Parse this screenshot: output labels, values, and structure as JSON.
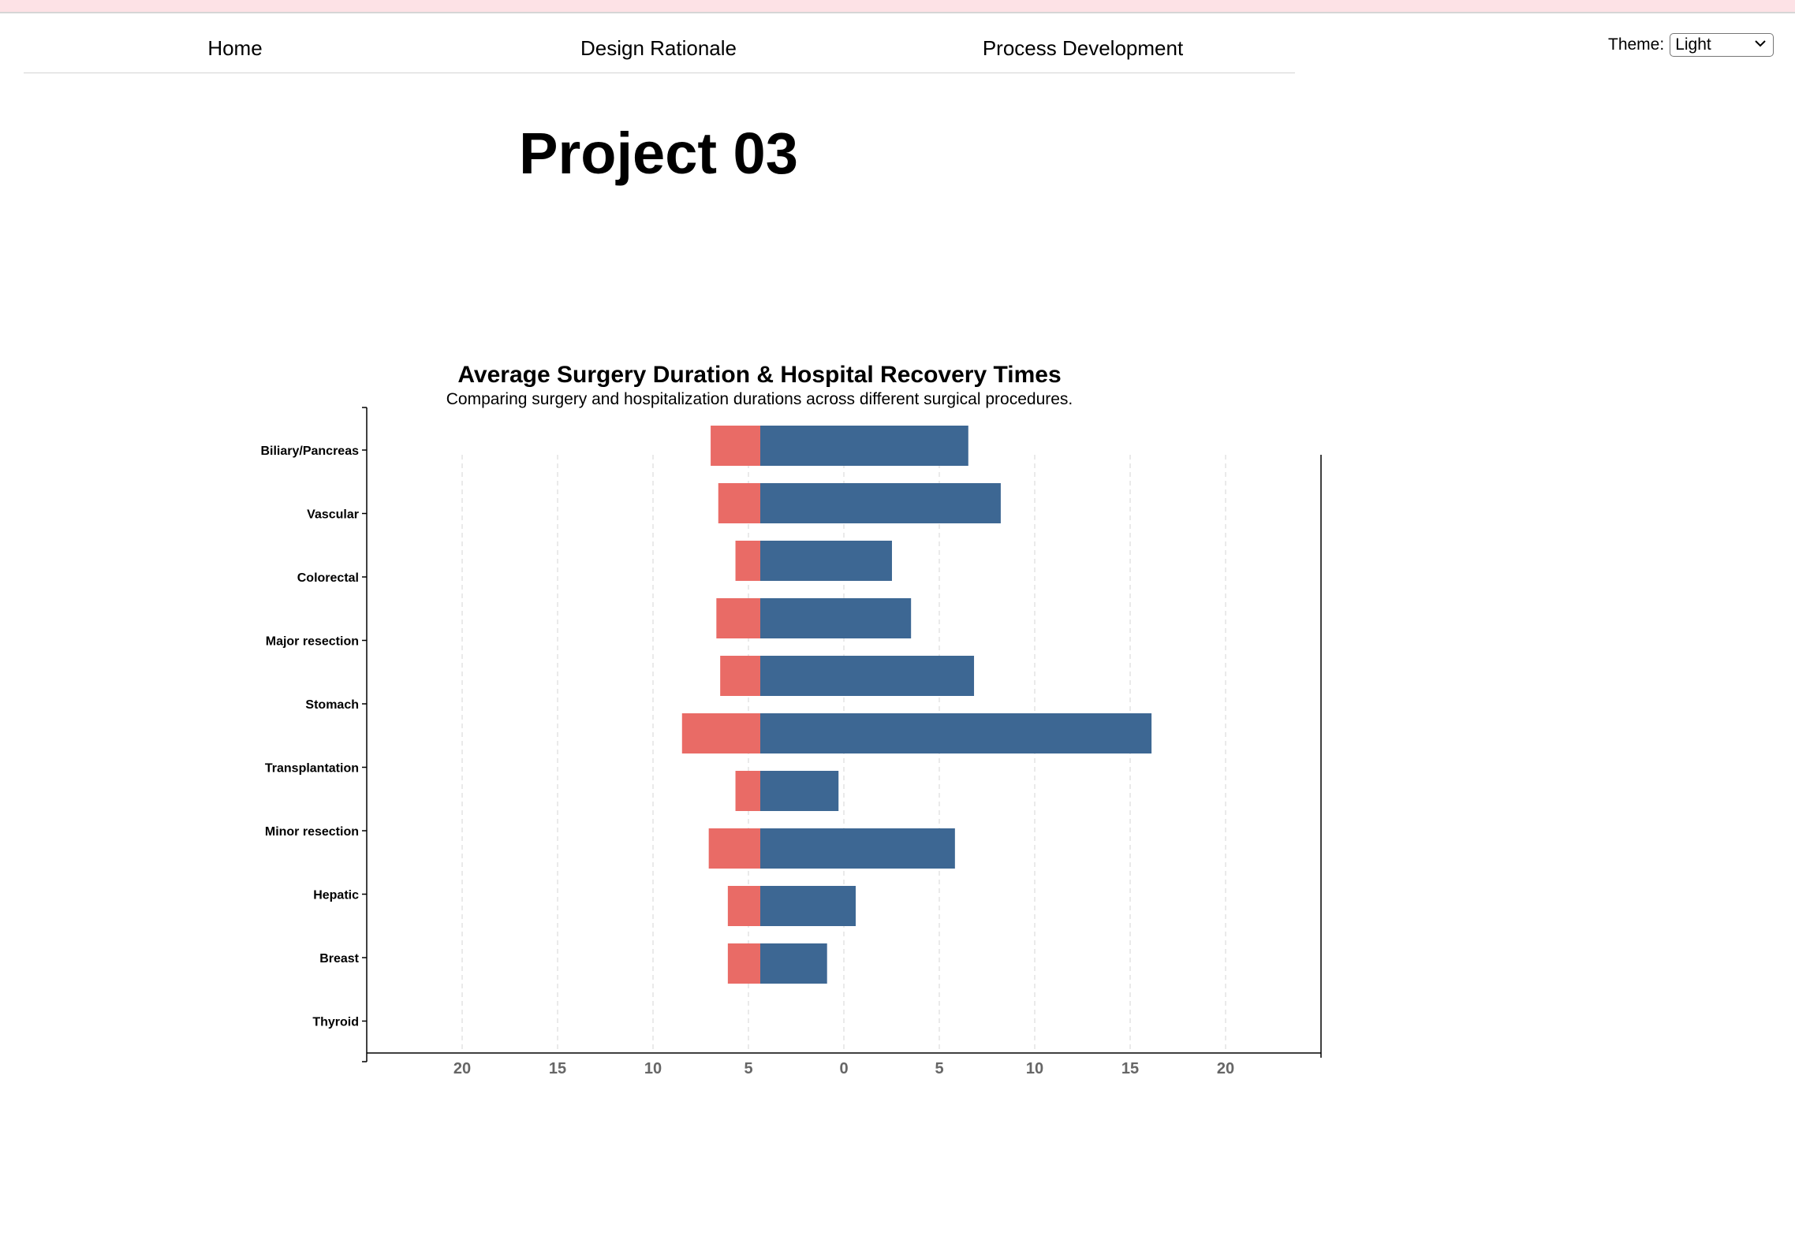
{
  "nav": {
    "items": [
      {
        "label": "Home"
      },
      {
        "label": "Design Rationale"
      },
      {
        "label": "Process Development"
      }
    ]
  },
  "theme": {
    "label": "Theme:",
    "selected": "Light"
  },
  "page_title": "Project 03",
  "chart_data": {
    "type": "bar",
    "title": "Average Surgery Duration & Hospital Recovery Times",
    "subtitle": "Comparing surgery and hospitalization durations across different surgical procedures.",
    "categories": [
      "Biliary/Pancreas",
      "Vascular",
      "Colorectal",
      "Major resection",
      "Stomach",
      "Transplantation",
      "Minor resection",
      "Hepatic",
      "Breast",
      "Thyroid"
    ],
    "series": [
      {
        "color": "#e96b66",
        "values": [
          2.6,
          2.2,
          1.3,
          2.3,
          2.1,
          4.1,
          1.3,
          2.7,
          1.7,
          1.7
        ]
      },
      {
        "color": "#3d6793",
        "values": [
          10.9,
          12.6,
          6.9,
          7.9,
          11.2,
          20.5,
          4.1,
          10.2,
          5.0,
          3.5
        ]
      }
    ],
    "tick_labels": [
      "20",
      "15",
      "10",
      "5",
      "0",
      "5",
      "10",
      "15",
      "20"
    ],
    "xlim": [
      -25,
      25
    ],
    "grid": true
  }
}
